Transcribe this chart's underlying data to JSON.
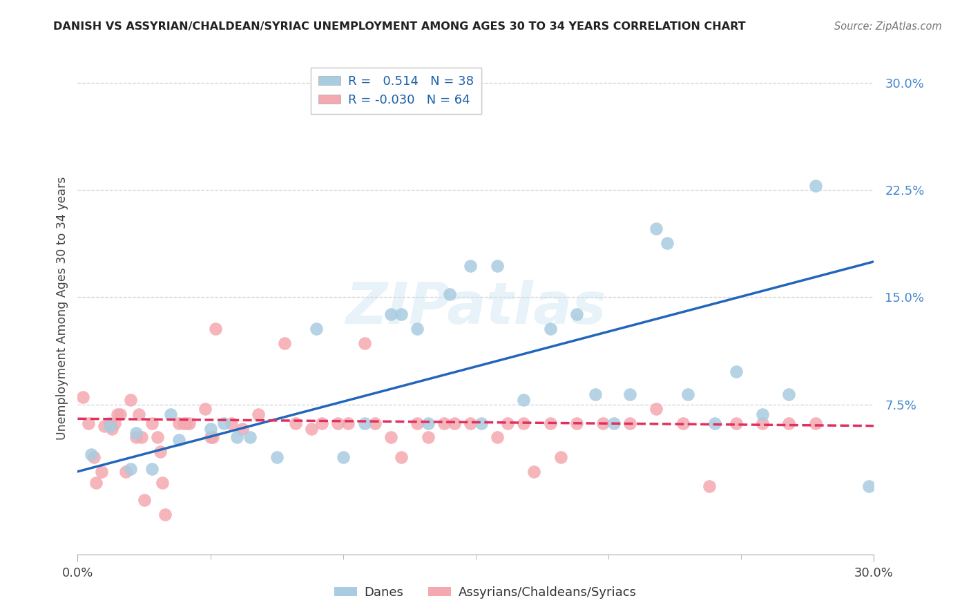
{
  "title": "DANISH VS ASSYRIAN/CHALDEAN/SYRIAC UNEMPLOYMENT AMONG AGES 30 TO 34 YEARS CORRELATION CHART",
  "source": "Source: ZipAtlas.com",
  "ylabel": "Unemployment Among Ages 30 to 34 years",
  "x_min": 0.0,
  "x_max": 0.3,
  "y_min": -0.03,
  "y_max": 0.315,
  "y_tick_vals": [
    0.075,
    0.15,
    0.225,
    0.3
  ],
  "y_tick_labels": [
    "7.5%",
    "15.0%",
    "22.5%",
    "30.0%"
  ],
  "legend1_label": "R =   0.514   N = 38",
  "legend2_label": "R = -0.030   N = 64",
  "legend_bottom_label1": "Danes",
  "legend_bottom_label2": "Assyrians/Chaldeans/Syriacs",
  "blue_color": "#a8cce0",
  "pink_color": "#f4a8b0",
  "line_blue": "#2266bb",
  "line_pink": "#e03060",
  "background_color": "#ffffff",
  "grid_color": "#cccccc",
  "blue_line_y0": 0.028,
  "blue_line_y1": 0.175,
  "pink_line_y0": 0.065,
  "pink_line_y1": 0.06,
  "blue_dots_x": [
    0.005,
    0.012,
    0.02,
    0.022,
    0.028,
    0.035,
    0.038,
    0.05,
    0.055,
    0.06,
    0.065,
    0.075,
    0.09,
    0.1,
    0.108,
    0.118,
    0.122,
    0.128,
    0.132,
    0.14,
    0.148,
    0.152,
    0.158,
    0.168,
    0.178,
    0.188,
    0.195,
    0.202,
    0.208,
    0.218,
    0.222,
    0.23,
    0.24,
    0.248,
    0.258,
    0.268,
    0.278,
    0.298
  ],
  "blue_dots_y": [
    0.04,
    0.06,
    0.03,
    0.055,
    0.03,
    0.068,
    0.05,
    0.058,
    0.062,
    0.052,
    0.052,
    0.038,
    0.128,
    0.038,
    0.062,
    0.138,
    0.138,
    0.128,
    0.062,
    0.152,
    0.172,
    0.062,
    0.172,
    0.078,
    0.128,
    0.138,
    0.082,
    0.062,
    0.082,
    0.198,
    0.188,
    0.082,
    0.062,
    0.098,
    0.068,
    0.082,
    0.228,
    0.018
  ],
  "pink_dots_x": [
    0.002,
    0.004,
    0.006,
    0.007,
    0.009,
    0.01,
    0.012,
    0.013,
    0.014,
    0.015,
    0.016,
    0.018,
    0.02,
    0.022,
    0.023,
    0.024,
    0.025,
    0.028,
    0.03,
    0.031,
    0.032,
    0.033,
    0.038,
    0.04,
    0.041,
    0.042,
    0.048,
    0.05,
    0.051,
    0.052,
    0.058,
    0.062,
    0.068,
    0.078,
    0.082,
    0.088,
    0.092,
    0.098,
    0.102,
    0.108,
    0.112,
    0.118,
    0.122,
    0.128,
    0.132,
    0.138,
    0.142,
    0.148,
    0.158,
    0.162,
    0.168,
    0.172,
    0.178,
    0.182,
    0.188,
    0.198,
    0.208,
    0.218,
    0.228,
    0.238,
    0.248,
    0.258,
    0.268,
    0.278
  ],
  "pink_dots_y": [
    0.08,
    0.062,
    0.038,
    0.02,
    0.028,
    0.06,
    0.062,
    0.058,
    0.062,
    0.068,
    0.068,
    0.028,
    0.078,
    0.052,
    0.068,
    0.052,
    0.008,
    0.062,
    0.052,
    0.042,
    0.02,
    -0.002,
    0.062,
    0.062,
    0.062,
    0.062,
    0.072,
    0.052,
    0.052,
    0.128,
    0.062,
    0.058,
    0.068,
    0.118,
    0.062,
    0.058,
    0.062,
    0.062,
    0.062,
    0.118,
    0.062,
    0.052,
    0.038,
    0.062,
    0.052,
    0.062,
    0.062,
    0.062,
    0.052,
    0.062,
    0.062,
    0.028,
    0.062,
    0.038,
    0.062,
    0.062,
    0.062,
    0.072,
    0.062,
    0.018,
    0.062,
    0.062,
    0.062,
    0.062
  ]
}
